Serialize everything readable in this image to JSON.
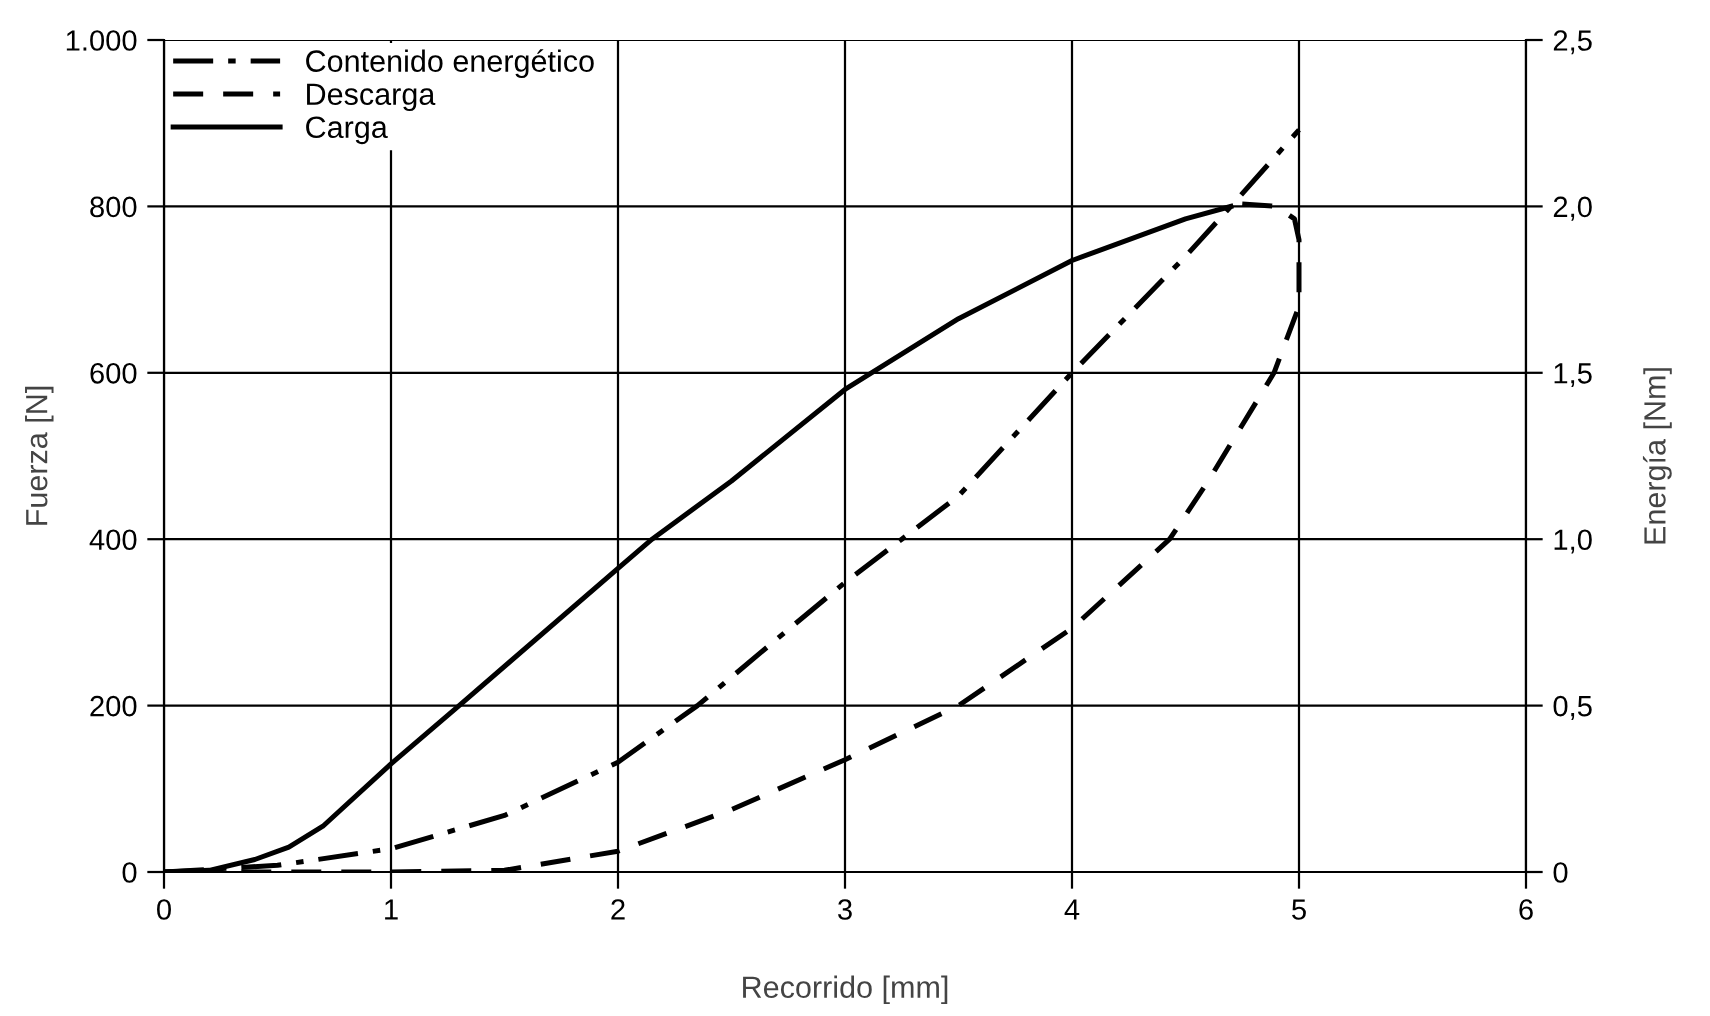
{
  "chart_data": {
    "type": "line",
    "xlabel": "Recorrido [mm]",
    "ylabel": "Fuerza [N]",
    "y2label": "Energía [Nm]",
    "xlim": [
      0,
      6
    ],
    "xticks": [
      0,
      1,
      2,
      3,
      4,
      5,
      6
    ],
    "ylim": [
      0,
      1000
    ],
    "yticks": [
      0,
      200,
      400,
      600,
      800,
      {
        "value": 1000,
        "label": "1.000"
      }
    ],
    "y2lim": [
      0,
      2.5
    ],
    "y2ticks": [
      {
        "value": 0,
        "label": "0"
      },
      {
        "value": 0.5,
        "label": "0,5"
      },
      {
        "value": 1,
        "label": "1,0"
      },
      {
        "value": 1.5,
        "label": "1,5"
      },
      {
        "value": 2,
        "label": "2,0"
      },
      {
        "value": 2.5,
        "label": "2,5"
      }
    ],
    "grid": true,
    "legend": "top left",
    "series": [
      {
        "name": "Contenido energético",
        "color": "#000000",
        "line_style": "dashdot",
        "axis": "y2",
        "x": [
          0,
          0.5,
          1,
          1.5,
          2,
          2.35,
          2.7,
          3,
          3.25,
          3.5,
          4,
          4.5,
          4.7,
          5
        ],
        "values": [
          0,
          0.02,
          0.07,
          0.17,
          0.33,
          0.5,
          0.7,
          0.87,
          1.0,
          1.13,
          1.5,
          1.85,
          2.0,
          2.23
        ]
      },
      {
        "name": "Descarga",
        "color": "#000000",
        "line_style": "dashed",
        "x": [
          4.75,
          4.9,
          4.98,
          5.0,
          5.0,
          4.89,
          4.6,
          4.43,
          4.0,
          3.5,
          3.0,
          2.5,
          2.0,
          1.5,
          1.0,
          0.5,
          0
        ],
        "values": [
          803,
          800,
          785,
          760,
          680,
          600,
          470,
          400,
          293,
          200,
          135,
          75,
          25,
          2,
          0,
          0,
          0
        ]
      },
      {
        "name": "Carga",
        "color": "#000000",
        "line_style": "solid",
        "x": [
          0,
          0.2,
          0.4,
          0.55,
          0.7,
          1.0,
          1.3,
          2.0,
          2.15,
          2.5,
          3.0,
          3.5,
          4.0,
          4.5,
          4.7
        ],
        "values": [
          0,
          2,
          15,
          30,
          55,
          130,
          200,
          365,
          400,
          470,
          580,
          665,
          735,
          785,
          800
        ]
      }
    ]
  }
}
